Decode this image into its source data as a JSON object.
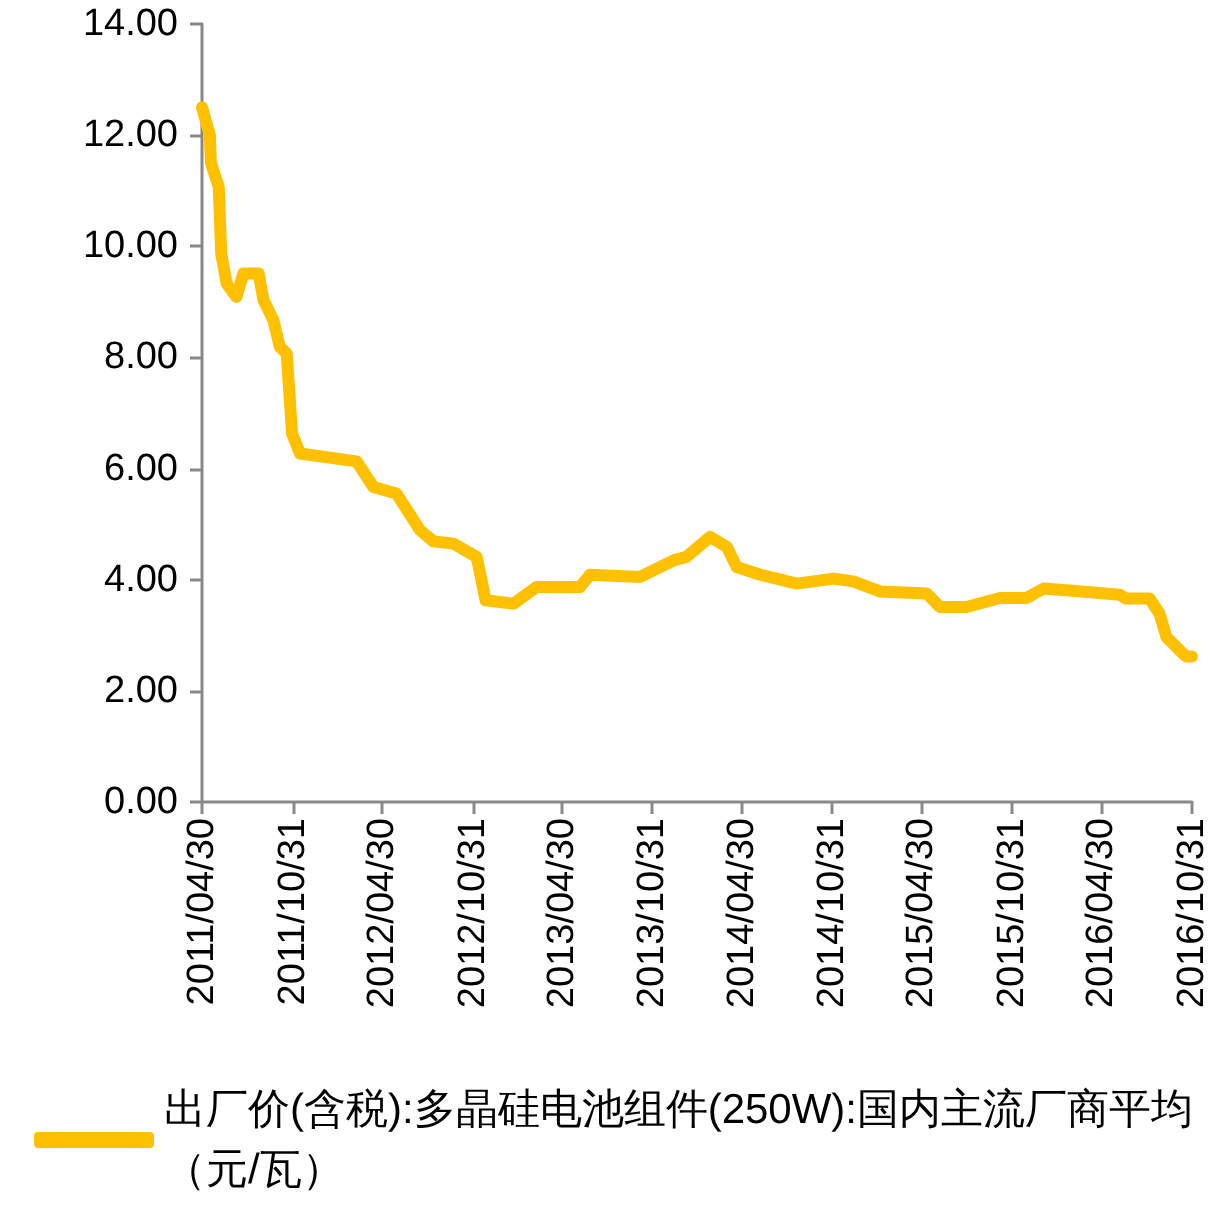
{
  "chart_data": {
    "type": "line",
    "x": [
      "2011-04-30",
      "2011-05-16",
      "2011-05-18",
      "2011-06-03",
      "2011-06-08",
      "2011-06-19",
      "2011-07-09",
      "2011-07-23",
      "2011-08-23",
      "2011-09-02",
      "2011-09-22",
      "2011-10-05",
      "2011-10-19",
      "2011-10-30",
      "2011-11-15",
      "2012-03-09",
      "2012-04-12",
      "2012-05-29",
      "2012-07-16",
      "2012-08-12",
      "2012-09-22",
      "2012-11-08",
      "2012-11-26",
      "2013-01-22",
      "2013-03-10",
      "2013-06-06",
      "2013-06-26",
      "2013-10-06",
      "2013-12-13",
      "2014-01-08",
      "2014-02-25",
      "2014-03-31",
      "2014-04-20",
      "2014-06-07",
      "2014-08-20",
      "2014-11-03",
      "2014-12-13",
      "2015-02-05",
      "2015-05-11",
      "2015-06-07",
      "2015-07-31",
      "2015-10-07",
      "2015-11-30",
      "2016-01-03",
      "2016-02-19",
      "2016-06-06",
      "2016-06-19",
      "2016-08-06",
      "2016-08-26",
      "2016-09-09",
      "2016-10-06",
      "2016-10-19",
      "2016-10-31"
    ],
    "series": [
      {
        "name": "出厂价(含税):多晶硅电池组件(250W):国内主流厂商平均（元/瓦）",
        "color": "#ffc000",
        "values": [
          12.5,
          12.0,
          11.5,
          11.07,
          9.87,
          9.33,
          9.09,
          9.51,
          9.51,
          9.03,
          8.67,
          8.19,
          8.07,
          6.63,
          6.27,
          6.13,
          5.67,
          5.55,
          4.89,
          4.69,
          4.65,
          4.41,
          3.63,
          3.57,
          3.87,
          3.87,
          4.09,
          4.05,
          4.35,
          4.41,
          4.77,
          4.59,
          4.23,
          4.09,
          3.93,
          4.02,
          3.97,
          3.79,
          3.75,
          3.51,
          3.51,
          3.67,
          3.67,
          3.84,
          3.81,
          3.73,
          3.66,
          3.66,
          3.39,
          2.97,
          2.73,
          2.62,
          2.62
        ]
      }
    ],
    "xlim": [
      "2011-04-30",
      "2016-10-31"
    ],
    "xticks": [
      {
        "value": "2011-04-30",
        "label": "2011/04/30"
      },
      {
        "value": "2011-10-31",
        "label": "2011/10/31"
      },
      {
        "value": "2012-04-30",
        "label": "2012/04/30"
      },
      {
        "value": "2012-10-31",
        "label": "2012/10/31"
      },
      {
        "value": "2013-04-30",
        "label": "2013/04/30"
      },
      {
        "value": "2013-10-31",
        "label": "2013/10/31"
      },
      {
        "value": "2014-04-30",
        "label": "2014/04/30"
      },
      {
        "value": "2014-10-31",
        "label": "2014/10/31"
      },
      {
        "value": "2015-04-30",
        "label": "2015/04/30"
      },
      {
        "value": "2015-10-31",
        "label": "2015/10/31"
      },
      {
        "value": "2016-04-30",
        "label": "2016/04/30"
      },
      {
        "value": "2016-10-31",
        "label": "2016/10/31"
      }
    ],
    "ylim": [
      0,
      14
    ],
    "yticks": [
      {
        "value": 0,
        "label": "0.00"
      },
      {
        "value": 2,
        "label": "2.00"
      },
      {
        "value": 4,
        "label": "4.00"
      },
      {
        "value": 6,
        "label": "6.00"
      },
      {
        "value": 8,
        "label": "8.00"
      },
      {
        "value": 10,
        "label": "10.00"
      },
      {
        "value": 12,
        "label": "12.00"
      },
      {
        "value": 14,
        "label": "14.00"
      }
    ],
    "grid": false,
    "legend": "bottom",
    "marker": "none",
    "line_style": "solid"
  }
}
